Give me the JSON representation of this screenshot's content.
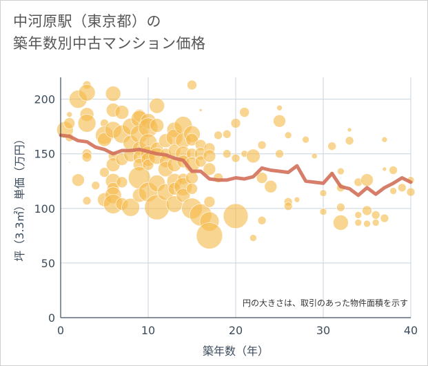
{
  "title_line1": "中河原駅（東京都）の",
  "title_line2": "築年数別中古マンション価格",
  "note": "円の大きさは、取引のあった物件面積を示す",
  "colors": {
    "bubble": "#f5b94a",
    "trend": "#d2705a",
    "grid": "#c7d3de",
    "text": "#3d4c5c"
  },
  "chart_data": {
    "type": "scatter",
    "xlabel": "築年数（年）",
    "ylabel": "坪（3.3㎡）単価（万円）",
    "xlim": [
      0,
      40
    ],
    "ylim": [
      0,
      220
    ],
    "xticks": [
      0,
      10,
      20,
      30,
      40
    ],
    "yticks": [
      0,
      50,
      100,
      150,
      200
    ],
    "grid": true,
    "bubbles": [
      {
        "x": 0.5,
        "y": 172,
        "s": 12
      },
      {
        "x": 1,
        "y": 178,
        "s": 8
      },
      {
        "x": 1,
        "y": 165,
        "s": 6
      },
      {
        "x": 1,
        "y": 186,
        "s": 4
      },
      {
        "x": 1,
        "y": 142,
        "s": 1
      },
      {
        "x": 2,
        "y": 200,
        "s": 13
      },
      {
        "x": 2,
        "y": 126,
        "s": 9
      },
      {
        "x": 3,
        "y": 213,
        "s": 6
      },
      {
        "x": 3,
        "y": 206,
        "s": 12
      },
      {
        "x": 3,
        "y": 186,
        "s": 10
      },
      {
        "x": 3,
        "y": 178,
        "s": 13
      },
      {
        "x": 3,
        "y": 150,
        "s": 7
      },
      {
        "x": 3,
        "y": 147,
        "s": 7
      },
      {
        "x": 3,
        "y": 107,
        "s": 6
      },
      {
        "x": 4,
        "y": 121,
        "s": 6
      },
      {
        "x": 5,
        "y": 178,
        "s": 6
      },
      {
        "x": 5,
        "y": 167,
        "s": 13
      },
      {
        "x": 5,
        "y": 163,
        "s": 10
      },
      {
        "x": 5,
        "y": 133,
        "s": 7
      },
      {
        "x": 5,
        "y": 108,
        "s": 10
      },
      {
        "x": 6,
        "y": 205,
        "s": 11
      },
      {
        "x": 6,
        "y": 190,
        "s": 10
      },
      {
        "x": 6,
        "y": 172,
        "s": 12
      },
      {
        "x": 6,
        "y": 148,
        "s": 7
      },
      {
        "x": 6,
        "y": 140,
        "s": 10
      },
      {
        "x": 6,
        "y": 125,
        "s": 11
      },
      {
        "x": 6,
        "y": 118,
        "s": 9
      },
      {
        "x": 6,
        "y": 112,
        "s": 12
      },
      {
        "x": 6,
        "y": 104,
        "s": 14
      },
      {
        "x": 7,
        "y": 188,
        "s": 10
      },
      {
        "x": 7,
        "y": 168,
        "s": 13
      },
      {
        "x": 7,
        "y": 145,
        "s": 9
      },
      {
        "x": 7,
        "y": 124,
        "s": 8
      },
      {
        "x": 7,
        "y": 104,
        "s": 9
      },
      {
        "x": 8,
        "y": 175,
        "s": 12
      },
      {
        "x": 8,
        "y": 160,
        "s": 11
      },
      {
        "x": 8,
        "y": 149,
        "s": 10
      },
      {
        "x": 8,
        "y": 101,
        "s": 13
      },
      {
        "x": 9,
        "y": 185,
        "s": 9
      },
      {
        "x": 9,
        "y": 182,
        "s": 12
      },
      {
        "x": 9,
        "y": 168,
        "s": 13
      },
      {
        "x": 9,
        "y": 155,
        "s": 10
      },
      {
        "x": 9,
        "y": 147,
        "s": 9
      },
      {
        "x": 9,
        "y": 140,
        "s": 9
      },
      {
        "x": 9,
        "y": 128,
        "s": 16
      },
      {
        "x": 9,
        "y": 112,
        "s": 10
      },
      {
        "x": 10,
        "y": 180,
        "s": 11
      },
      {
        "x": 10,
        "y": 174,
        "s": 14
      },
      {
        "x": 10,
        "y": 160,
        "s": 13
      },
      {
        "x": 10,
        "y": 150,
        "s": 11
      },
      {
        "x": 10,
        "y": 145,
        "s": 10
      },
      {
        "x": 10,
        "y": 140,
        "s": 8
      },
      {
        "x": 10,
        "y": 115,
        "s": 14
      },
      {
        "x": 11,
        "y": 194,
        "s": 11
      },
      {
        "x": 11,
        "y": 176,
        "s": 10
      },
      {
        "x": 11,
        "y": 155,
        "s": 9
      },
      {
        "x": 11,
        "y": 148,
        "s": 12
      },
      {
        "x": 11,
        "y": 123,
        "s": 12
      },
      {
        "x": 11,
        "y": 101,
        "s": 18
      },
      {
        "x": 12,
        "y": 162,
        "s": 10
      },
      {
        "x": 12,
        "y": 150,
        "s": 8
      },
      {
        "x": 12,
        "y": 143,
        "s": 9
      },
      {
        "x": 12,
        "y": 136,
        "s": 11
      },
      {
        "x": 12,
        "y": 115,
        "s": 12
      },
      {
        "x": 13,
        "y": 172,
        "s": 11
      },
      {
        "x": 13,
        "y": 165,
        "s": 12
      },
      {
        "x": 13,
        "y": 153,
        "s": 9
      },
      {
        "x": 13,
        "y": 140,
        "s": 10
      },
      {
        "x": 13,
        "y": 125,
        "s": 11
      },
      {
        "x": 13,
        "y": 118,
        "s": 9
      },
      {
        "x": 13,
        "y": 104,
        "s": 12
      },
      {
        "x": 14,
        "y": 176,
        "s": 13
      },
      {
        "x": 14,
        "y": 162,
        "s": 11
      },
      {
        "x": 14,
        "y": 150,
        "s": 11
      },
      {
        "x": 14,
        "y": 143,
        "s": 9
      },
      {
        "x": 14,
        "y": 127,
        "s": 8
      },
      {
        "x": 14,
        "y": 120,
        "s": 13
      },
      {
        "x": 14,
        "y": 112,
        "s": 10
      },
      {
        "x": 15,
        "y": 213,
        "s": 7
      },
      {
        "x": 15,
        "y": 168,
        "s": 12
      },
      {
        "x": 15,
        "y": 163,
        "s": 9
      },
      {
        "x": 15,
        "y": 150,
        "s": 8
      },
      {
        "x": 15,
        "y": 140,
        "s": 11
      },
      {
        "x": 15,
        "y": 128,
        "s": 9
      },
      {
        "x": 15,
        "y": 118,
        "s": 8
      },
      {
        "x": 15,
        "y": 100,
        "s": 15
      },
      {
        "x": 16,
        "y": 190,
        "s": 2
      },
      {
        "x": 16,
        "y": 158,
        "s": 8
      },
      {
        "x": 16,
        "y": 150,
        "s": 9
      },
      {
        "x": 16,
        "y": 143,
        "s": 8
      },
      {
        "x": 16,
        "y": 94,
        "s": 16
      },
      {
        "x": 17,
        "y": 155,
        "s": 8
      },
      {
        "x": 17,
        "y": 148,
        "s": 9
      },
      {
        "x": 17,
        "y": 136,
        "s": 9
      },
      {
        "x": 17,
        "y": 106,
        "s": 8
      },
      {
        "x": 17,
        "y": 88,
        "s": 14
      },
      {
        "x": 17,
        "y": 75,
        "s": 19
      },
      {
        "x": 18,
        "y": 167,
        "s": 6
      },
      {
        "x": 18,
        "y": 128,
        "s": 7
      },
      {
        "x": 19,
        "y": 168,
        "s": 6
      },
      {
        "x": 19,
        "y": 150,
        "s": 6
      },
      {
        "x": 20,
        "y": 178,
        "s": 7
      },
      {
        "x": 20,
        "y": 146,
        "s": 6
      },
      {
        "x": 20,
        "y": 93,
        "s": 18
      },
      {
        "x": 21,
        "y": 188,
        "s": 7
      },
      {
        "x": 21,
        "y": 150,
        "s": 5
      },
      {
        "x": 22,
        "y": 148,
        "s": 10
      },
      {
        "x": 22,
        "y": 73,
        "s": 5
      },
      {
        "x": 23,
        "y": 158,
        "s": 6
      },
      {
        "x": 23,
        "y": 128,
        "s": 8
      },
      {
        "x": 23,
        "y": 89,
        "s": 6
      },
      {
        "x": 24,
        "y": 120,
        "s": 9
      },
      {
        "x": 25,
        "y": 192,
        "s": 4
      },
      {
        "x": 25,
        "y": 180,
        "s": 9
      },
      {
        "x": 25,
        "y": 150,
        "s": 6
      },
      {
        "x": 26,
        "y": 167,
        "s": 5
      },
      {
        "x": 26,
        "y": 106,
        "s": 6
      },
      {
        "x": 26,
        "y": 102,
        "s": 6
      },
      {
        "x": 27,
        "y": 108,
        "s": 4
      },
      {
        "x": 28,
        "y": 163,
        "s": 5
      },
      {
        "x": 29,
        "y": 148,
        "s": 4
      },
      {
        "x": 30,
        "y": 114,
        "s": 5
      },
      {
        "x": 30,
        "y": 97,
        "s": 5
      },
      {
        "x": 31,
        "y": 157,
        "s": 6
      },
      {
        "x": 31,
        "y": 132,
        "s": 3
      },
      {
        "x": 32,
        "y": 134,
        "s": 5
      },
      {
        "x": 32,
        "y": 119,
        "s": 6
      },
      {
        "x": 32,
        "y": 101,
        "s": 6
      },
      {
        "x": 32,
        "y": 87,
        "s": 11
      },
      {
        "x": 33,
        "y": 172,
        "s": 3
      },
      {
        "x": 33,
        "y": 162,
        "s": 6
      },
      {
        "x": 34,
        "y": 124,
        "s": 6
      },
      {
        "x": 34,
        "y": 94,
        "s": 5
      },
      {
        "x": 34,
        "y": 87,
        "s": 5
      },
      {
        "x": 35,
        "y": 126,
        "s": 9
      },
      {
        "x": 35,
        "y": 98,
        "s": 7
      },
      {
        "x": 35,
        "y": 86,
        "s": 5
      },
      {
        "x": 36,
        "y": 94,
        "s": 6
      },
      {
        "x": 36,
        "y": 87,
        "s": 5
      },
      {
        "x": 37,
        "y": 163,
        "s": 4
      },
      {
        "x": 37,
        "y": 136,
        "s": 3
      },
      {
        "x": 37,
        "y": 91,
        "s": 6
      },
      {
        "x": 38,
        "y": 135,
        "s": 6
      },
      {
        "x": 38,
        "y": 116,
        "s": 5
      },
      {
        "x": 39,
        "y": 119,
        "s": 6
      },
      {
        "x": 40,
        "y": 126,
        "s": 5
      },
      {
        "x": 40,
        "y": 115,
        "s": 6
      }
    ],
    "trend": {
      "x": [
        0,
        1,
        2,
        3,
        4,
        5,
        6,
        7,
        8,
        9,
        10,
        11,
        12,
        13,
        14,
        15,
        16,
        17,
        18,
        19,
        20,
        21,
        22,
        23,
        24,
        25,
        26,
        27,
        28,
        29,
        30,
        31,
        32,
        33,
        34,
        35,
        36,
        37,
        38,
        39,
        40
      ],
      "y": [
        167,
        166,
        162,
        161,
        156,
        154,
        150,
        153,
        153,
        154,
        152,
        150,
        149,
        146,
        144,
        134,
        134,
        127,
        126,
        126,
        128,
        127,
        129,
        137,
        135,
        134,
        133,
        139,
        125,
        124,
        123,
        132,
        120,
        118,
        112,
        119,
        113,
        119,
        123,
        128,
        124
      ]
    }
  }
}
